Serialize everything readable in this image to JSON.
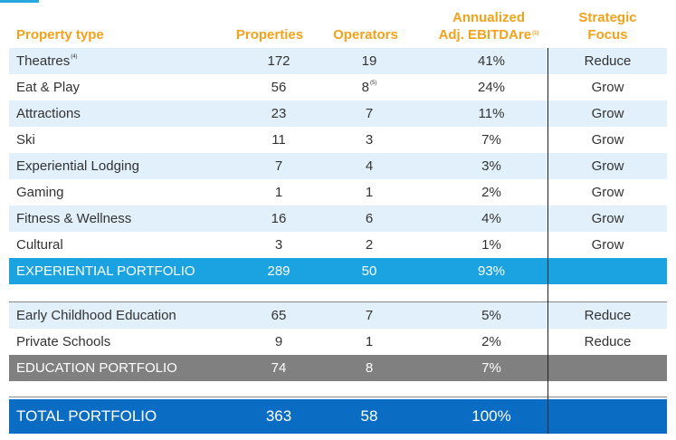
{
  "headers": {
    "property_type": "Property type",
    "properties": "Properties",
    "operators": "Operators",
    "ebitda_line1": "Annualized",
    "ebitda_line2": "Adj. EBITDAre",
    "ebitda_note": "(1)",
    "focus_line1": "Strategic",
    "focus_line2": "Focus"
  },
  "rows": [
    {
      "type": "Theatres",
      "type_note": "(4)",
      "properties": "172",
      "operators": "19",
      "ebitda": "41%",
      "focus": "Reduce"
    },
    {
      "type": "Eat & Play",
      "properties": "56",
      "operators": "8",
      "operators_note": "(5)",
      "ebitda": "24%",
      "focus": "Grow"
    },
    {
      "type": "Attractions",
      "properties": "23",
      "operators": "7",
      "ebitda": "11%",
      "focus": "Grow"
    },
    {
      "type": "Ski",
      "properties": "11",
      "operators": "3",
      "ebitda": "7%",
      "focus": "Grow"
    },
    {
      "type": "Experiential Lodging",
      "properties": "7",
      "operators": "4",
      "ebitda": "3%",
      "focus": "Grow"
    },
    {
      "type": "Gaming",
      "properties": "1",
      "operators": "1",
      "ebitda": "2%",
      "focus": "Grow"
    },
    {
      "type": "Fitness & Wellness",
      "properties": "16",
      "operators": "6",
      "ebitda": "4%",
      "focus": "Grow"
    },
    {
      "type": "Cultural",
      "properties": "3",
      "operators": "2",
      "ebitda": "1%",
      "focus": "Grow"
    }
  ],
  "experiential_total": {
    "type": "EXPERIENTIAL PORTFOLIO",
    "properties": "289",
    "operators": "50",
    "ebitda": "93%"
  },
  "education_rows": [
    {
      "type": "Early Childhood Education",
      "properties": "65",
      "operators": "7",
      "ebitda": "5%",
      "focus": "Reduce"
    },
    {
      "type": "Private Schools",
      "properties": "9",
      "operators": "1",
      "ebitda": "2%",
      "focus": "Reduce"
    }
  ],
  "education_total": {
    "type": "EDUCATION PORTFOLIO",
    "properties": "74",
    "operators": "8",
    "ebitda": "7%"
  },
  "grand_total": {
    "type": "TOTAL PORTFOLIO",
    "properties": "363",
    "operators": "58",
    "ebitda": "100%"
  },
  "colors": {
    "header_text": "#f3a21b",
    "alt_row": "#e1f0fa",
    "experiential_band": "#1aa3e0",
    "education_band": "#808080",
    "total_band": "#0a6dc3"
  }
}
